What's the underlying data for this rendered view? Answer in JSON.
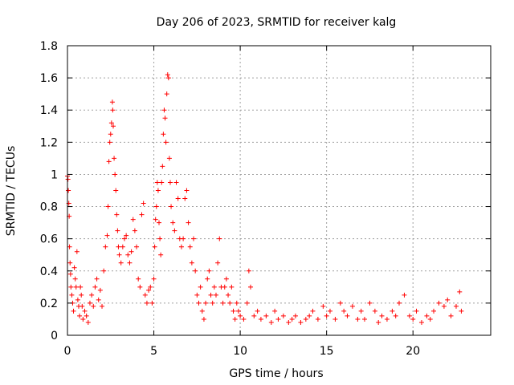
{
  "chart_data": {
    "type": "scatter",
    "title": "Day 206 of 2023, SRMTID for receiver kalg",
    "xlabel": "GPS time / hours",
    "ylabel": "SRMTID / TECUs",
    "xlim": [
      0,
      24.5
    ],
    "ylim": [
      0,
      1.8
    ],
    "xticks": [
      0,
      5,
      10,
      15,
      20
    ],
    "xtick_labels": [
      "0",
      "5",
      "10",
      "15",
      "20"
    ],
    "yticks": [
      0,
      0.2,
      0.4,
      0.6,
      0.8,
      1.0,
      1.2,
      1.4,
      1.6,
      1.8
    ],
    "ytick_labels": [
      "0",
      "0.2",
      "0.4",
      "0.6",
      "0.8",
      "1",
      "1.2",
      "1.4",
      "1.6",
      "1.8"
    ],
    "grid": true,
    "marker": "+",
    "color": "#ff0000",
    "series": [
      {
        "name": "SRMTID",
        "points": [
          [
            0.0,
            0.99
          ],
          [
            0.03,
            0.97
          ],
          [
            0.05,
            0.9
          ],
          [
            0.08,
            0.82
          ],
          [
            0.1,
            0.74
          ],
          [
            0.12,
            0.55
          ],
          [
            0.15,
            0.45
          ],
          [
            0.18,
            0.38
          ],
          [
            0.2,
            0.3
          ],
          [
            0.25,
            0.25
          ],
          [
            0.3,
            0.2
          ],
          [
            0.35,
            0.15
          ],
          [
            0.4,
            0.42
          ],
          [
            0.45,
            0.35
          ],
          [
            0.5,
            0.3
          ],
          [
            0.55,
            0.52
          ],
          [
            0.6,
            0.22
          ],
          [
            0.65,
            0.18
          ],
          [
            0.7,
            0.12
          ],
          [
            0.75,
            0.3
          ],
          [
            0.8,
            0.25
          ],
          [
            0.85,
            0.18
          ],
          [
            0.9,
            0.1
          ],
          [
            1.0,
            0.15
          ],
          [
            1.1,
            0.12
          ],
          [
            1.2,
            0.08
          ],
          [
            1.3,
            0.2
          ],
          [
            1.4,
            0.25
          ],
          [
            1.5,
            0.18
          ],
          [
            1.6,
            0.3
          ],
          [
            1.7,
            0.35
          ],
          [
            1.8,
            0.22
          ],
          [
            1.9,
            0.28
          ],
          [
            2.0,
            0.18
          ],
          [
            2.1,
            0.4
          ],
          [
            2.2,
            0.55
          ],
          [
            2.3,
            0.62
          ],
          [
            2.35,
            0.8
          ],
          [
            2.4,
            1.08
          ],
          [
            2.45,
            1.2
          ],
          [
            2.5,
            1.25
          ],
          [
            2.55,
            1.32
          ],
          [
            2.6,
            1.45
          ],
          [
            2.62,
            1.4
          ],
          [
            2.65,
            1.3
          ],
          [
            2.7,
            1.1
          ],
          [
            2.75,
            1.0
          ],
          [
            2.8,
            0.9
          ],
          [
            2.85,
            0.75
          ],
          [
            2.9,
            0.65
          ],
          [
            2.95,
            0.55
          ],
          [
            3.0,
            0.5
          ],
          [
            3.1,
            0.45
          ],
          [
            3.2,
            0.55
          ],
          [
            3.3,
            0.6
          ],
          [
            3.4,
            0.62
          ],
          [
            3.5,
            0.5
          ],
          [
            3.6,
            0.45
          ],
          [
            3.7,
            0.52
          ],
          [
            3.8,
            0.72
          ],
          [
            3.9,
            0.65
          ],
          [
            4.0,
            0.55
          ],
          [
            4.1,
            0.35
          ],
          [
            4.2,
            0.3
          ],
          [
            4.3,
            0.75
          ],
          [
            4.4,
            0.82
          ],
          [
            4.5,
            0.25
          ],
          [
            4.6,
            0.2
          ],
          [
            4.7,
            0.28
          ],
          [
            4.8,
            0.3
          ],
          [
            4.9,
            0.2
          ],
          [
            5.0,
            0.35
          ],
          [
            5.05,
            0.55
          ],
          [
            5.1,
            0.72
          ],
          [
            5.15,
            0.8
          ],
          [
            5.2,
            0.95
          ],
          [
            5.25,
            0.9
          ],
          [
            5.3,
            0.7
          ],
          [
            5.35,
            0.6
          ],
          [
            5.4,
            0.5
          ],
          [
            5.45,
            0.95
          ],
          [
            5.5,
            1.05
          ],
          [
            5.55,
            1.25
          ],
          [
            5.6,
            1.4
          ],
          [
            5.65,
            1.35
          ],
          [
            5.7,
            1.2
          ],
          [
            5.75,
            1.5
          ],
          [
            5.8,
            1.62
          ],
          [
            5.85,
            1.6
          ],
          [
            5.9,
            1.1
          ],
          [
            5.95,
            0.95
          ],
          [
            6.0,
            0.8
          ],
          [
            6.1,
            0.7
          ],
          [
            6.2,
            0.65
          ],
          [
            6.3,
            0.95
          ],
          [
            6.4,
            0.85
          ],
          [
            6.5,
            0.6
          ],
          [
            6.6,
            0.55
          ],
          [
            6.7,
            0.6
          ],
          [
            6.8,
            0.85
          ],
          [
            6.9,
            0.9
          ],
          [
            7.0,
            0.7
          ],
          [
            7.1,
            0.55
          ],
          [
            7.2,
            0.45
          ],
          [
            7.3,
            0.6
          ],
          [
            7.4,
            0.4
          ],
          [
            7.5,
            0.25
          ],
          [
            7.6,
            0.2
          ],
          [
            7.7,
            0.3
          ],
          [
            7.8,
            0.15
          ],
          [
            7.9,
            0.1
          ],
          [
            8.0,
            0.2
          ],
          [
            8.1,
            0.35
          ],
          [
            8.2,
            0.4
          ],
          [
            8.3,
            0.25
          ],
          [
            8.4,
            0.2
          ],
          [
            8.5,
            0.3
          ],
          [
            8.6,
            0.25
          ],
          [
            8.7,
            0.45
          ],
          [
            8.8,
            0.6
          ],
          [
            8.9,
            0.3
          ],
          [
            9.0,
            0.2
          ],
          [
            9.1,
            0.3
          ],
          [
            9.2,
            0.35
          ],
          [
            9.3,
            0.25
          ],
          [
            9.4,
            0.2
          ],
          [
            9.5,
            0.3
          ],
          [
            9.6,
            0.15
          ],
          [
            9.7,
            0.1
          ],
          [
            9.8,
            0.2
          ],
          [
            9.9,
            0.15
          ],
          [
            10.0,
            0.12
          ],
          [
            10.2,
            0.1
          ],
          [
            10.4,
            0.2
          ],
          [
            10.5,
            0.4
          ],
          [
            10.6,
            0.3
          ],
          [
            10.8,
            0.12
          ],
          [
            11.0,
            0.15
          ],
          [
            11.2,
            0.1
          ],
          [
            11.5,
            0.12
          ],
          [
            11.8,
            0.08
          ],
          [
            12.0,
            0.15
          ],
          [
            12.2,
            0.1
          ],
          [
            12.5,
            0.12
          ],
          [
            12.8,
            0.08
          ],
          [
            13.0,
            0.1
          ],
          [
            13.2,
            0.12
          ],
          [
            13.5,
            0.08
          ],
          [
            13.8,
            0.1
          ],
          [
            14.0,
            0.12
          ],
          [
            14.2,
            0.15
          ],
          [
            14.5,
            0.1
          ],
          [
            14.8,
            0.18
          ],
          [
            15.0,
            0.12
          ],
          [
            15.2,
            0.15
          ],
          [
            15.5,
            0.1
          ],
          [
            15.8,
            0.2
          ],
          [
            16.0,
            0.15
          ],
          [
            16.2,
            0.12
          ],
          [
            16.5,
            0.18
          ],
          [
            16.8,
            0.1
          ],
          [
            17.0,
            0.15
          ],
          [
            17.2,
            0.1
          ],
          [
            17.5,
            0.2
          ],
          [
            17.8,
            0.15
          ],
          [
            18.0,
            0.08
          ],
          [
            18.2,
            0.12
          ],
          [
            18.5,
            0.1
          ],
          [
            18.8,
            0.15
          ],
          [
            19.0,
            0.12
          ],
          [
            19.2,
            0.2
          ],
          [
            19.5,
            0.25
          ],
          [
            19.8,
            0.12
          ],
          [
            20.0,
            0.1
          ],
          [
            20.2,
            0.15
          ],
          [
            20.5,
            0.08
          ],
          [
            20.8,
            0.12
          ],
          [
            21.0,
            0.1
          ],
          [
            21.2,
            0.15
          ],
          [
            21.5,
            0.2
          ],
          [
            21.8,
            0.18
          ],
          [
            22.0,
            0.22
          ],
          [
            22.2,
            0.12
          ],
          [
            22.5,
            0.18
          ],
          [
            22.7,
            0.27
          ],
          [
            22.8,
            0.15
          ]
        ]
      }
    ]
  }
}
